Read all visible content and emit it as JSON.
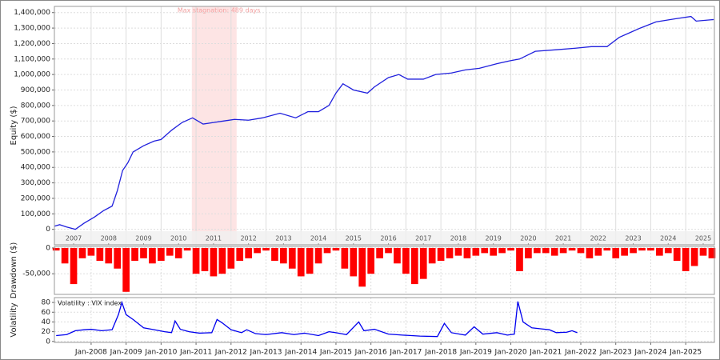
{
  "chart_data": [
    {
      "type": "line",
      "ylabel": "Equity ($)",
      "annotation": {
        "text": "Max stagnation: 489 days",
        "xspan": [
          2010.88,
          2012.16
        ]
      },
      "xlim": [
        2006.95,
        2025.82
      ],
      "ylim": [
        -100000,
        1440000
      ],
      "xticks": [
        {
          "value": 2007.5,
          "label": "2007"
        },
        {
          "value": 2008.5,
          "label": "2008"
        },
        {
          "value": 2009.5,
          "label": "2009"
        },
        {
          "value": 2010.5,
          "label": "2010"
        },
        {
          "value": 2011.5,
          "label": "2011"
        },
        {
          "value": 2012.5,
          "label": "2012"
        },
        {
          "value": 2013.5,
          "label": "2013"
        },
        {
          "value": 2014.5,
          "label": "2014"
        },
        {
          "value": 2015.5,
          "label": "2015"
        },
        {
          "value": 2016.5,
          "label": "2016"
        },
        {
          "value": 2017.5,
          "label": "2017"
        },
        {
          "value": 2018.5,
          "label": "2018"
        },
        {
          "value": 2019.5,
          "label": "2019"
        },
        {
          "value": 2020.5,
          "label": "2020"
        },
        {
          "value": 2021.5,
          "label": "2021"
        },
        {
          "value": 2022.5,
          "label": "2022"
        },
        {
          "value": 2023.5,
          "label": "2023"
        },
        {
          "value": 2024.5,
          "label": "2024"
        },
        {
          "value": 2025.5,
          "label": "2025"
        }
      ],
      "yticks": [
        0,
        {
          "value": 100000,
          "label": "100,000"
        },
        {
          "value": 200000,
          "label": "200,000"
        },
        {
          "value": 300000,
          "label": "300,000"
        },
        {
          "value": 400000,
          "label": "400,000"
        },
        {
          "value": 500000,
          "label": "500,000"
        },
        {
          "value": 600000,
          "label": "600,000"
        },
        {
          "value": 700000,
          "label": "700,000"
        },
        {
          "value": 800000,
          "label": "800,000"
        },
        {
          "value": 900000,
          "label": "900,000"
        },
        {
          "value": 1000000,
          "label": "1,000,000"
        },
        {
          "value": 1100000,
          "label": "1,100,000"
        },
        {
          "value": 1200000,
          "label": "1,200,000"
        },
        {
          "value": 1300000,
          "label": "1,300,000"
        },
        {
          "value": 1400000,
          "label": "1,400,000"
        }
      ],
      "grid": true,
      "color": "#2020dd",
      "x": [
        2006.95,
        2007.1,
        2007.3,
        2007.55,
        2007.8,
        2008.1,
        2008.35,
        2008.6,
        2008.75,
        2008.9,
        2009.05,
        2009.2,
        2009.5,
        2009.8,
        2010.0,
        2010.3,
        2010.6,
        2010.9,
        2011.2,
        2011.5,
        2011.8,
        2012.1,
        2012.5,
        2012.9,
        2013.4,
        2013.85,
        2014.2,
        2014.5,
        2014.8,
        2015.0,
        2015.2,
        2015.5,
        2015.9,
        2016.1,
        2016.5,
        2016.8,
        2017.05,
        2017.5,
        2017.85,
        2018.3,
        2018.7,
        2019.1,
        2019.6,
        2020.0,
        2020.25,
        2020.7,
        2021.3,
        2021.85,
        2022.3,
        2022.75,
        2023.1,
        2023.4,
        2023.7,
        2024.15,
        2024.7,
        2025.15,
        2025.3,
        2025.8
      ],
      "values": [
        20000,
        30000,
        15000,
        0,
        40000,
        80000,
        120000,
        150000,
        250000,
        380000,
        430000,
        500000,
        540000,
        570000,
        580000,
        640000,
        690000,
        720000,
        680000,
        690000,
        700000,
        710000,
        705000,
        720000,
        750000,
        720000,
        760000,
        760000,
        800000,
        880000,
        940000,
        900000,
        880000,
        920000,
        980000,
        1000000,
        970000,
        970000,
        1000000,
        1010000,
        1030000,
        1040000,
        1070000,
        1090000,
        1100000,
        1150000,
        1160000,
        1170000,
        1180000,
        1180000,
        1240000,
        1270000,
        1300000,
        1340000,
        1360000,
        1375000,
        1345000,
        1355000
      ]
    },
    {
      "type": "bar",
      "ylabel": "Drawdown ($)",
      "xlim": [
        2006.95,
        2025.82
      ],
      "ylim": [
        -90000,
        3000
      ],
      "yticks": [
        0,
        {
          "value": -50000,
          "label": "-50,000"
        }
      ],
      "grid": true,
      "color": "#ff0000",
      "x": [
        2007.0,
        2007.25,
        2007.5,
        2007.75,
        2008.0,
        2008.25,
        2008.5,
        2008.75,
        2009.0,
        2009.25,
        2009.5,
        2009.75,
        2010.0,
        2010.25,
        2010.5,
        2010.75,
        2011.0,
        2011.25,
        2011.5,
        2011.75,
        2012.0,
        2012.25,
        2012.5,
        2012.75,
        2013.0,
        2013.25,
        2013.5,
        2013.75,
        2014.0,
        2014.25,
        2014.5,
        2014.75,
        2015.0,
        2015.25,
        2015.5,
        2015.75,
        2016.0,
        2016.25,
        2016.5,
        2016.75,
        2017.0,
        2017.25,
        2017.5,
        2017.75,
        2018.0,
        2018.25,
        2018.5,
        2018.75,
        2019.0,
        2019.25,
        2019.5,
        2019.75,
        2020.0,
        2020.25,
        2020.5,
        2020.75,
        2021.0,
        2021.25,
        2021.5,
        2021.75,
        2022.0,
        2022.25,
        2022.5,
        2022.75,
        2023.0,
        2023.25,
        2023.5,
        2023.75,
        2024.0,
        2024.25,
        2024.5,
        2024.75,
        2025.0,
        2025.25,
        2025.5,
        2025.75
      ],
      "values": [
        -5000,
        -30000,
        -70000,
        -20000,
        -15000,
        -25000,
        -30000,
        -40000,
        -85000,
        -25000,
        -20000,
        -30000,
        -25000,
        -15000,
        -20000,
        -5000,
        -50000,
        -45000,
        -55000,
        -50000,
        -40000,
        -25000,
        -20000,
        -10000,
        -5000,
        -25000,
        -30000,
        -40000,
        -55000,
        -50000,
        -30000,
        -10000,
        -5000,
        -40000,
        -55000,
        -75000,
        -50000,
        -20000,
        -10000,
        -30000,
        -50000,
        -70000,
        -60000,
        -30000,
        -25000,
        -20000,
        -15000,
        -20000,
        -15000,
        -10000,
        -15000,
        -10000,
        -5000,
        -45000,
        -20000,
        -10000,
        -10000,
        -15000,
        -10000,
        -5000,
        -10000,
        -20000,
        -15000,
        -5000,
        -20000,
        -15000,
        -10000,
        -5000,
        -5000,
        -15000,
        -10000,
        -25000,
        -45000,
        -35000,
        -15000,
        -20000
      ]
    },
    {
      "type": "line",
      "ylabel": "Volatility",
      "legend": "Volatility : VIX index",
      "xlim": [
        2006.95,
        2025.82
      ],
      "ylim": [
        -2,
        90
      ],
      "xticks": [
        {
          "value": 2008,
          "label": "Jan-2008"
        },
        {
          "value": 2009,
          "label": "Jan-2009"
        },
        {
          "value": 2010,
          "label": "Jan-2010"
        },
        {
          "value": 2011,
          "label": "Jan-2011"
        },
        {
          "value": 2012,
          "label": "Jan-2012"
        },
        {
          "value": 2013,
          "label": "Jan-2013"
        },
        {
          "value": 2014,
          "label": "Jan-2014"
        },
        {
          "value": 2015,
          "label": "Jan-2015"
        },
        {
          "value": 2016,
          "label": "Jan-2016"
        },
        {
          "value": 2017,
          "label": "Jan-2017"
        },
        {
          "value": 2018,
          "label": "Jan-2018"
        },
        {
          "value": 2019,
          "label": "Jan-2019"
        },
        {
          "value": 2020,
          "label": "Jan-2020"
        },
        {
          "value": 2021,
          "label": "Jan-2021"
        },
        {
          "value": 2022,
          "label": "Jan-2022"
        },
        {
          "value": 2023,
          "label": "Jan-2023"
        },
        {
          "value": 2024,
          "label": "Jan-2024"
        },
        {
          "value": 2025,
          "label": "Jan-2025"
        }
      ],
      "yticks": [
        0,
        20,
        40,
        60,
        80
      ],
      "grid": true,
      "color": "#0000ee",
      "x": [
        2007.0,
        2007.3,
        2007.55,
        2007.8,
        2008.0,
        2008.3,
        2008.6,
        2008.78,
        2008.88,
        2009.0,
        2009.2,
        2009.5,
        2009.8,
        2010.1,
        2010.3,
        2010.4,
        2010.55,
        2010.8,
        2011.1,
        2011.45,
        2011.6,
        2011.75,
        2012.0,
        2012.3,
        2012.45,
        2012.7,
        2013.0,
        2013.45,
        2013.8,
        2014.1,
        2014.5,
        2014.8,
        2015.0,
        2015.3,
        2015.65,
        2015.8,
        2016.1,
        2016.5,
        2016.9,
        2017.4,
        2017.9,
        2018.1,
        2018.3,
        2018.7,
        2018.95,
        2019.2,
        2019.6,
        2019.9,
        2020.1,
        2020.2,
        2020.35,
        2020.6,
        2020.85,
        2021.1,
        2021.3,
        2021.6,
        2021.75,
        2021.9
      ],
      "values": [
        12,
        14,
        22,
        24,
        25,
        22,
        24,
        55,
        80,
        55,
        45,
        28,
        24,
        20,
        18,
        42,
        25,
        20,
        17,
        18,
        45,
        38,
        24,
        18,
        24,
        16,
        14,
        18,
        14,
        17,
        12,
        20,
        18,
        14,
        40,
        22,
        25,
        15,
        13,
        11,
        10,
        37,
        18,
        13,
        30,
        15,
        18,
        13,
        15,
        82,
        40,
        28,
        26,
        24,
        18,
        19,
        22,
        18
      ]
    }
  ]
}
